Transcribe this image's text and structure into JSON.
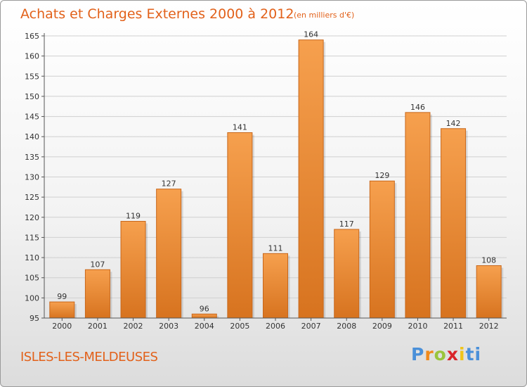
{
  "header": {
    "title": "Achats et Charges Externes 2000 à 2012",
    "subtitle": "(en milliers d'€)"
  },
  "footer": {
    "commune": "ISLES-LES-MELDEUSES",
    "logo_letters": [
      "P",
      "r",
      "o",
      "x",
      "i",
      "ti"
    ]
  },
  "colors": {
    "title": "#e2611a",
    "bar_light": "#f6a04e",
    "bar_dark": "#d7731f",
    "grid": "#d0d0d0"
  },
  "chart_data": {
    "type": "bar",
    "title": "Achats et Charges Externes 2000 à 2012",
    "subtitle": "(en milliers d'€)",
    "categories": [
      "2000",
      "2001",
      "2002",
      "2003",
      "2004",
      "2005",
      "2006",
      "2007",
      "2008",
      "2009",
      "2010",
      "2011",
      "2012"
    ],
    "values": [
      99,
      107,
      119,
      127,
      96,
      141,
      111,
      164,
      117,
      129,
      146,
      142,
      108
    ],
    "ylim": [
      95,
      165
    ],
    "yticks": [
      95,
      100,
      105,
      110,
      115,
      120,
      125,
      130,
      135,
      140,
      145,
      150,
      155,
      160,
      165
    ],
    "grid": true,
    "xlabel": "",
    "ylabel": ""
  }
}
